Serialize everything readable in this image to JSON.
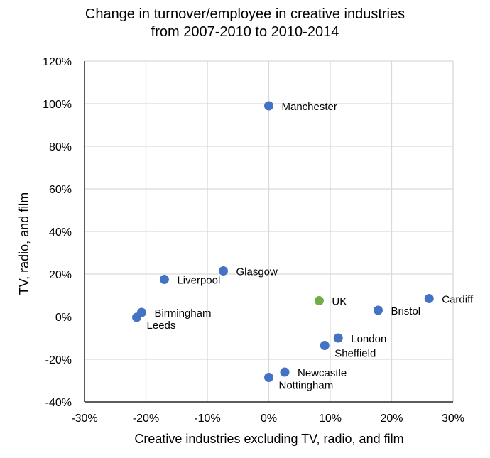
{
  "chart_data": {
    "type": "scatter",
    "title": "Change in turnover/employee in creative industries",
    "subtitle": "from 2007-2010 to 2010-2014",
    "xlabel": "Creative industries excluding TV, radio, and film",
    "ylabel": "TV, radio, and film",
    "xlim": [
      -0.3,
      0.3
    ],
    "ylim": [
      -0.4,
      1.2
    ],
    "x_ticks": [
      -0.3,
      -0.2,
      -0.1,
      0.0,
      0.1,
      0.2,
      0.3
    ],
    "x_tick_labels": [
      "-30%",
      "-20%",
      "-10%",
      "0%",
      "10%",
      "20%",
      "30%"
    ],
    "y_ticks": [
      -0.4,
      -0.2,
      0.0,
      0.2,
      0.4,
      0.6,
      0.8,
      1.0,
      1.2
    ],
    "y_tick_labels": [
      "-40%",
      "-20%",
      "0%",
      "20%",
      "40%",
      "60%",
      "80%",
      "100%",
      "120%"
    ],
    "grid": true,
    "colors": {
      "city": "#4472c4",
      "uk": "#70ad47"
    },
    "points": [
      {
        "label": "Manchester",
        "x": 0.0,
        "y": 0.99,
        "color": "#4472c4",
        "label_pos": "right"
      },
      {
        "label": "Glasgow",
        "x": -0.074,
        "y": 0.215,
        "color": "#4472c4",
        "label_pos": "right"
      },
      {
        "label": "Liverpool",
        "x": -0.17,
        "y": 0.175,
        "color": "#4472c4",
        "label_pos": "right"
      },
      {
        "label": "Birmingham",
        "x": -0.207,
        "y": 0.02,
        "color": "#4472c4",
        "label_pos": "right"
      },
      {
        "label": "Leeds",
        "x": -0.215,
        "y": -0.003,
        "color": "#4472c4",
        "label_pos": "below-right"
      },
      {
        "label": "UK",
        "x": 0.082,
        "y": 0.075,
        "color": "#70ad47",
        "label_pos": "right"
      },
      {
        "label": "Cardiff",
        "x": 0.261,
        "y": 0.085,
        "color": "#4472c4",
        "label_pos": "right"
      },
      {
        "label": "Bristol",
        "x": 0.178,
        "y": 0.03,
        "color": "#4472c4",
        "label_pos": "right"
      },
      {
        "label": "London",
        "x": 0.113,
        "y": -0.1,
        "color": "#4472c4",
        "label_pos": "right"
      },
      {
        "label": "Sheffield",
        "x": 0.091,
        "y": -0.135,
        "color": "#4472c4",
        "label_pos": "below-right"
      },
      {
        "label": "Newcastle",
        "x": 0.026,
        "y": -0.26,
        "color": "#4472c4",
        "label_pos": "right"
      },
      {
        "label": "Nottingham",
        "x": 0.0,
        "y": -0.285,
        "color": "#4472c4",
        "label_pos": "below-right"
      }
    ]
  }
}
